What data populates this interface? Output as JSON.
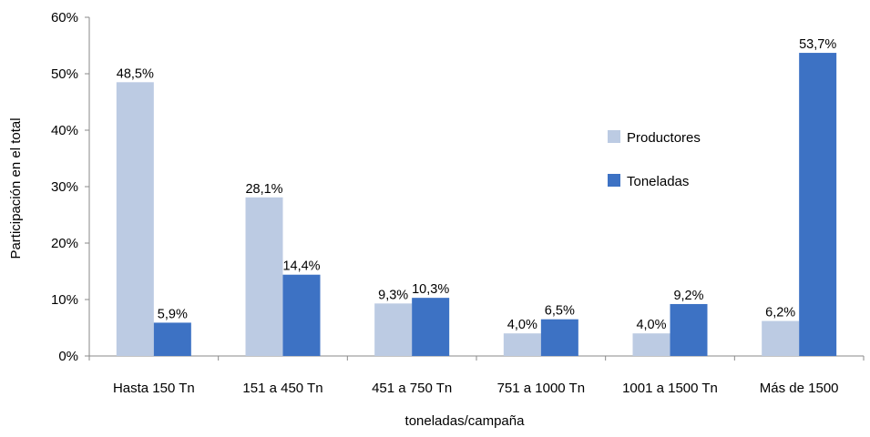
{
  "chart_data": {
    "type": "bar",
    "categories": [
      "Hasta 150 Tn",
      "151 a 450 Tn",
      "451 a 750 Tn",
      "751 a 1000 Tn",
      "1001 a 1500  Tn",
      "Más de 1500"
    ],
    "series": [
      {
        "name": "Productores",
        "values": [
          48.5,
          28.1,
          9.3,
          4.0,
          4.0,
          6.2
        ],
        "labels": [
          "48,5%",
          "28,1%",
          "9,3%",
          "4,0%",
          "4,0%",
          "6,2%"
        ],
        "color": "#bccbe3"
      },
      {
        "name": "Toneladas",
        "values": [
          5.9,
          14.4,
          10.3,
          6.5,
          9.2,
          53.7
        ],
        "labels": [
          "5,9%",
          "14,4%",
          "10,3%",
          "6,5%",
          "9,2%",
          "53,7%"
        ],
        "color": "#3d72c4"
      }
    ],
    "xlabel": "toneladas/campaña",
    "ylabel": "Participación en el total",
    "ylim": [
      0,
      60
    ],
    "yticks": [
      0,
      10,
      20,
      30,
      40,
      50,
      60
    ],
    "ytick_labels": [
      "0%",
      "10%",
      "20%",
      "30%",
      "40%",
      "50%",
      "60%"
    ],
    "grid": false,
    "legend_position": "right"
  }
}
